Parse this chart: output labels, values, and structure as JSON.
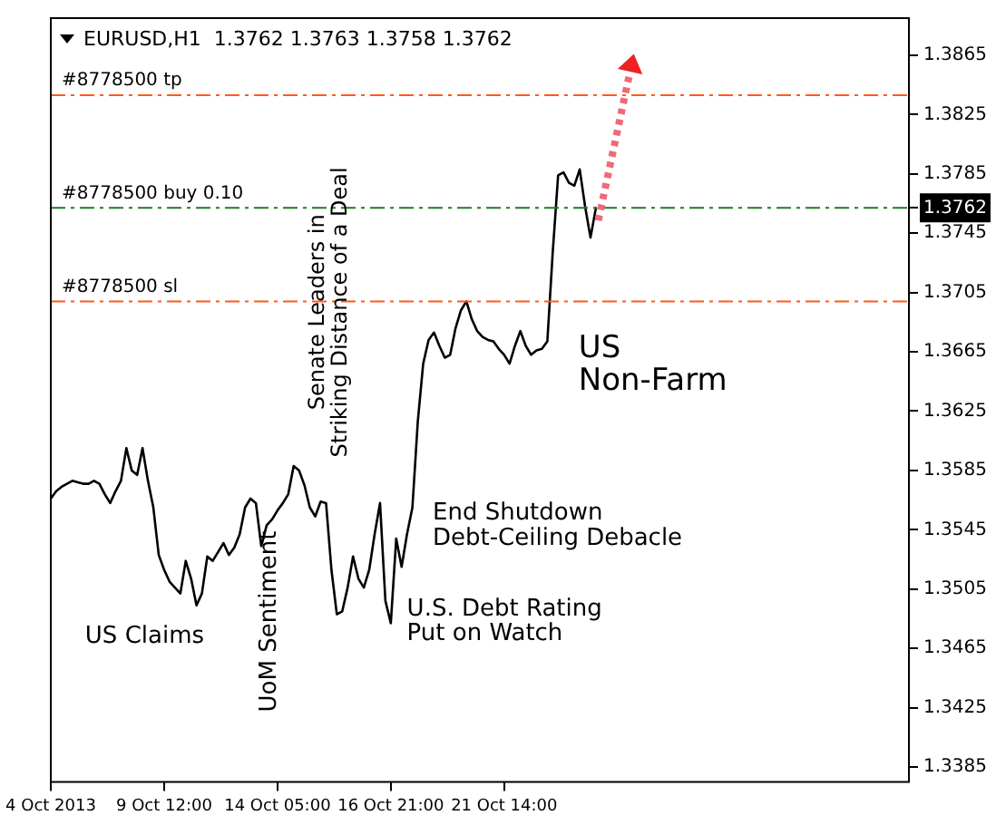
{
  "chart_data": {
    "type": "line",
    "title": "EURUSD,H1  1.3762 1.3763 1.3758 1.3762",
    "categories": [
      "4 Oct 2013",
      null,
      null,
      null,
      null,
      null,
      null,
      null,
      null,
      null,
      null,
      null,
      null,
      null,
      null,
      null,
      null,
      null,
      null,
      null,
      null,
      "9 Oct 12:00",
      null,
      null,
      null,
      null,
      null,
      null,
      null,
      null,
      null,
      null,
      null,
      null,
      null,
      null,
      null,
      null,
      null,
      null,
      null,
      null,
      "14 Oct 05:00",
      null,
      null,
      null,
      null,
      null,
      null,
      null,
      null,
      null,
      null,
      null,
      null,
      null,
      null,
      null,
      null,
      null,
      null,
      null,
      null,
      "16 Oct 21:00",
      null,
      null,
      null,
      null,
      null,
      null,
      null,
      null,
      null,
      null,
      null,
      null,
      null,
      null,
      null,
      null,
      null,
      null,
      null,
      null,
      "21 Oct 14:00",
      null,
      null,
      null,
      null,
      null,
      null,
      null,
      null,
      null,
      null,
      null,
      null,
      null,
      null,
      null,
      null,
      null,
      null,
      null,
      null,
      null,
      null,
      null,
      null,
      null,
      null,
      null,
      null,
      null,
      null,
      null,
      null,
      null,
      null,
      null,
      null,
      null,
      null,
      null,
      null,
      null,
      null,
      null,
      null,
      null,
      null,
      null,
      null,
      null,
      null,
      null,
      null,
      null,
      null,
      null,
      null,
      null,
      null,
      null,
      null,
      null,
      null,
      null,
      null,
      null,
      null,
      null,
      null,
      null,
      null,
      null,
      null,
      null,
      null,
      null
    ],
    "series": [
      {
        "color": "#000000",
        "values": [
          1.3566,
          1.3571,
          1.3574,
          1.3576,
          1.3578,
          1.3577,
          1.3576,
          1.3576,
          1.3578,
          1.3576,
          1.3569,
          1.3563,
          1.3571,
          1.3578,
          1.36,
          1.3585,
          1.3582,
          1.36,
          1.3578,
          1.356,
          1.3528,
          1.3518,
          1.351,
          1.3506,
          1.3502,
          1.3524,
          1.3512,
          1.3494,
          1.3502,
          1.3527,
          1.3524,
          1.353,
          1.3536,
          1.3528,
          1.3533,
          1.3542,
          1.356,
          1.3566,
          1.3563,
          1.3534,
          1.3548,
          1.3552,
          1.3558,
          1.3563,
          1.3569,
          1.3588,
          1.3585,
          1.3575,
          1.356,
          1.3554,
          1.3564,
          1.3563,
          1.3518,
          1.3488,
          1.349,
          1.3506,
          1.3527,
          1.3512,
          1.3506,
          1.3518,
          1.3542,
          1.3563,
          1.3497,
          1.3482,
          1.3539,
          1.352,
          1.3542,
          1.356,
          1.3618,
          1.3657,
          1.3673,
          1.3678,
          1.3669,
          1.3661,
          1.3663,
          1.3681,
          1.3693,
          1.3699,
          1.3687,
          1.3679,
          1.3675,
          1.3673,
          1.3672,
          1.3667,
          1.3663,
          1.3657,
          1.3669,
          1.3679,
          1.3669,
          1.3663,
          1.3666,
          1.3667,
          1.3672,
          1.3732,
          1.3784,
          1.3786,
          1.3779,
          1.3777,
          1.3788,
          1.3763,
          1.3742,
          1.3762,
          null,
          null,
          null,
          null,
          null,
          null,
          null,
          null,
          null,
          null,
          null,
          null,
          null,
          null,
          null,
          null,
          null,
          null,
          null,
          null,
          null,
          null,
          null,
          null,
          null,
          null,
          null,
          null,
          null,
          null,
          null,
          null,
          null,
          null,
          null,
          null,
          null,
          null,
          null,
          null,
          null,
          null,
          null,
          null,
          null,
          null,
          null,
          null,
          null,
          null,
          null,
          null,
          null,
          null,
          null,
          null,
          null,
          null
        ]
      }
    ],
    "ylim": [
      1.3375,
      1.389
    ],
    "yticks": [
      1.3385,
      1.3425,
      1.3465,
      1.3505,
      1.3545,
      1.3585,
      1.3625,
      1.3665,
      1.3705,
      1.3745,
      1.3762,
      1.3785,
      1.3825,
      1.3865
    ],
    "ref_lines": [
      {
        "axis": "y",
        "value": 1.3838,
        "label": "#8778500 tp",
        "color": "#ff5a1a",
        "line_style": "dashed"
      },
      {
        "axis": "y",
        "value": 1.3762,
        "label": "#8778500 buy 0.10",
        "color": "#1e7d1e",
        "line_style": "dashed"
      },
      {
        "axis": "y",
        "value": 1.3699,
        "label": "#8778500 sl",
        "color": "#ff5a1a",
        "line_style": "dashed"
      }
    ],
    "annotations": [
      "US Claims",
      "UoM Sentiment",
      "Senate Leaders in\nStriking Distance of a Deal",
      "End Shutdown\nDebt-Ceiling Debacle",
      "U.S. Debt Rating\nPut on Watch",
      "US\nNon-Farm"
    ],
    "grid": false,
    "legend": false,
    "marker": "none",
    "line_style": "solid"
  }
}
